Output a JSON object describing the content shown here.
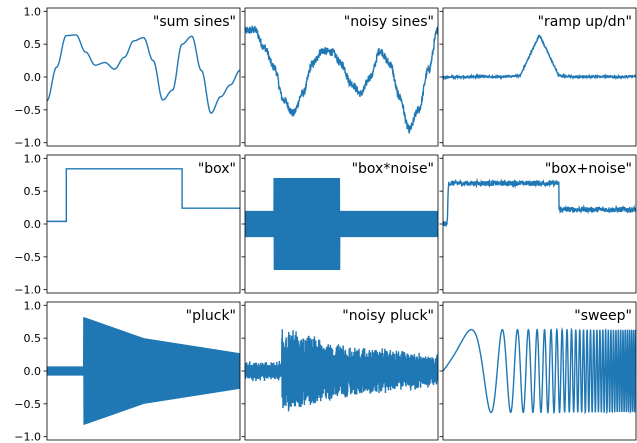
{
  "style": {
    "line_color": "#1f77b4",
    "axes_color": "#000000",
    "background": "#ffffff"
  },
  "chart_data": [
    {
      "type": "line",
      "title": "\"sum sines\"",
      "xlim": [
        0,
        1
      ],
      "ylim": [
        -1.05,
        1.05
      ],
      "yticks": [
        "1.0",
        "0.5",
        "0.0",
        "−0.5",
        "−1.0"
      ],
      "series": [
        {
          "x": [
            0,
            0.05,
            0.1,
            0.15,
            0.2,
            0.25,
            0.3,
            0.35,
            0.4,
            0.45,
            0.5,
            0.55,
            0.6,
            0.65,
            0.7,
            0.75,
            0.8,
            0.85,
            0.9,
            0.95,
            1.0
          ],
          "y": [
            -0.36,
            0.15,
            0.63,
            0.64,
            0.38,
            0.18,
            0.22,
            0.12,
            0.3,
            0.55,
            0.6,
            0.25,
            -0.35,
            -0.2,
            0.5,
            0.62,
            0.1,
            -0.55,
            -0.3,
            -0.12,
            0.1
          ]
        }
      ]
    },
    {
      "type": "line",
      "title": "\"noisy sines\"",
      "xlim": [
        0,
        1
      ],
      "ylim": [
        -1.05,
        1.05
      ],
      "series": [
        {
          "x": [
            0,
            0.05,
            0.1,
            0.15,
            0.2,
            0.25,
            0.3,
            0.35,
            0.4,
            0.45,
            0.5,
            0.55,
            0.6,
            0.65,
            0.7,
            0.75,
            0.8,
            0.85,
            0.9,
            0.95,
            1.0
          ],
          "y": [
            0.7,
            0.72,
            0.45,
            0.15,
            -0.35,
            -0.55,
            -0.25,
            0.2,
            0.4,
            0.38,
            0.2,
            -0.1,
            -0.25,
            0.0,
            0.4,
            0.2,
            -0.3,
            -0.8,
            -0.5,
            0.1,
            0.72
          ],
          "noise": 0.06
        }
      ]
    },
    {
      "type": "line",
      "title": "\"ramp up/dn\"",
      "xlim": [
        0,
        1
      ],
      "ylim": [
        -1.05,
        1.05
      ],
      "series": [
        {
          "x": [
            0,
            0.1,
            0.2,
            0.3,
            0.4,
            0.45,
            0.5,
            0.55,
            0.6,
            0.7,
            0.8,
            0.9,
            1.0
          ],
          "y": [
            0.0,
            0.0,
            0.01,
            0.0,
            0.02,
            0.33,
            0.64,
            0.33,
            0.02,
            0.0,
            0.01,
            0.0,
            0.01
          ],
          "noise": 0.015
        }
      ]
    },
    {
      "type": "line",
      "title": "\"box\"",
      "xlim": [
        0,
        1
      ],
      "ylim": [
        -1.05,
        1.05
      ],
      "yticks": [
        "1.0",
        "0.5",
        "0.0",
        "−0.5",
        "−1.0"
      ],
      "series": [
        {
          "x": [
            0,
            0.1,
            0.1,
            0.7,
            0.7,
            1.0
          ],
          "y": [
            0.04,
            0.04,
            0.84,
            0.84,
            0.24,
            0.24
          ]
        }
      ]
    },
    {
      "type": "line",
      "title": "\"box*noise\"",
      "xlim": [
        0,
        1
      ],
      "ylim": [
        -1.05,
        1.05
      ],
      "series": [
        {
          "x": [
            0,
            0.15,
            0.15,
            0.49,
            0.49,
            1.0
          ],
          "y": [
            0.0,
            0.0,
            0.0,
            0.0,
            0.0,
            0.0
          ],
          "band": [
            0.2,
            0.2,
            0.7,
            0.7,
            0.2,
            0.2
          ]
        }
      ]
    },
    {
      "type": "line",
      "title": "\"box+noise\"",
      "xlim": [
        0,
        1
      ],
      "ylim": [
        -1.05,
        1.05
      ],
      "series": [
        {
          "x": [
            0,
            0.02,
            0.03,
            0.6,
            0.6,
            1.0
          ],
          "y": [
            0.0,
            0.0,
            0.62,
            0.62,
            0.22,
            0.22
          ],
          "noise": 0.04
        }
      ]
    },
    {
      "type": "line",
      "title": "\"pluck\"",
      "xlim": [
        0,
        1
      ],
      "ylim": [
        -1.05,
        1.05
      ],
      "yticks": [
        "1.0",
        "0.5",
        "0.0",
        "−0.5",
        "−1.0"
      ],
      "series": [
        {
          "x": [
            0,
            0.19,
            0.19,
            0.5,
            1.0
          ],
          "y": [
            0.0,
            0.0,
            0.0,
            0.0,
            0.0
          ],
          "band": [
            0.07,
            0.07,
            0.82,
            0.5,
            0.27
          ]
        }
      ]
    },
    {
      "type": "line",
      "title": "\"noisy pluck\"",
      "xlim": [
        0,
        1
      ],
      "ylim": [
        -1.05,
        1.05
      ],
      "series": [
        {
          "x": [
            0,
            0.19,
            0.19,
            0.5,
            1.0
          ],
          "y": [
            0.0,
            0.0,
            0.0,
            0.0,
            0.0
          ],
          "band": [
            0.12,
            0.12,
            0.65,
            0.38,
            0.22
          ],
          "noise": 0.08
        }
      ]
    },
    {
      "type": "line",
      "title": "\"sweep\"",
      "xlim": [
        0,
        1
      ],
      "ylim": [
        -1.05,
        1.05
      ],
      "series": [
        {
          "x": [
            0,
            1.0
          ],
          "y": [
            0,
            0
          ],
          "amplitude": 0.63,
          "freq_start": 1,
          "freq_end": 60
        }
      ]
    }
  ]
}
